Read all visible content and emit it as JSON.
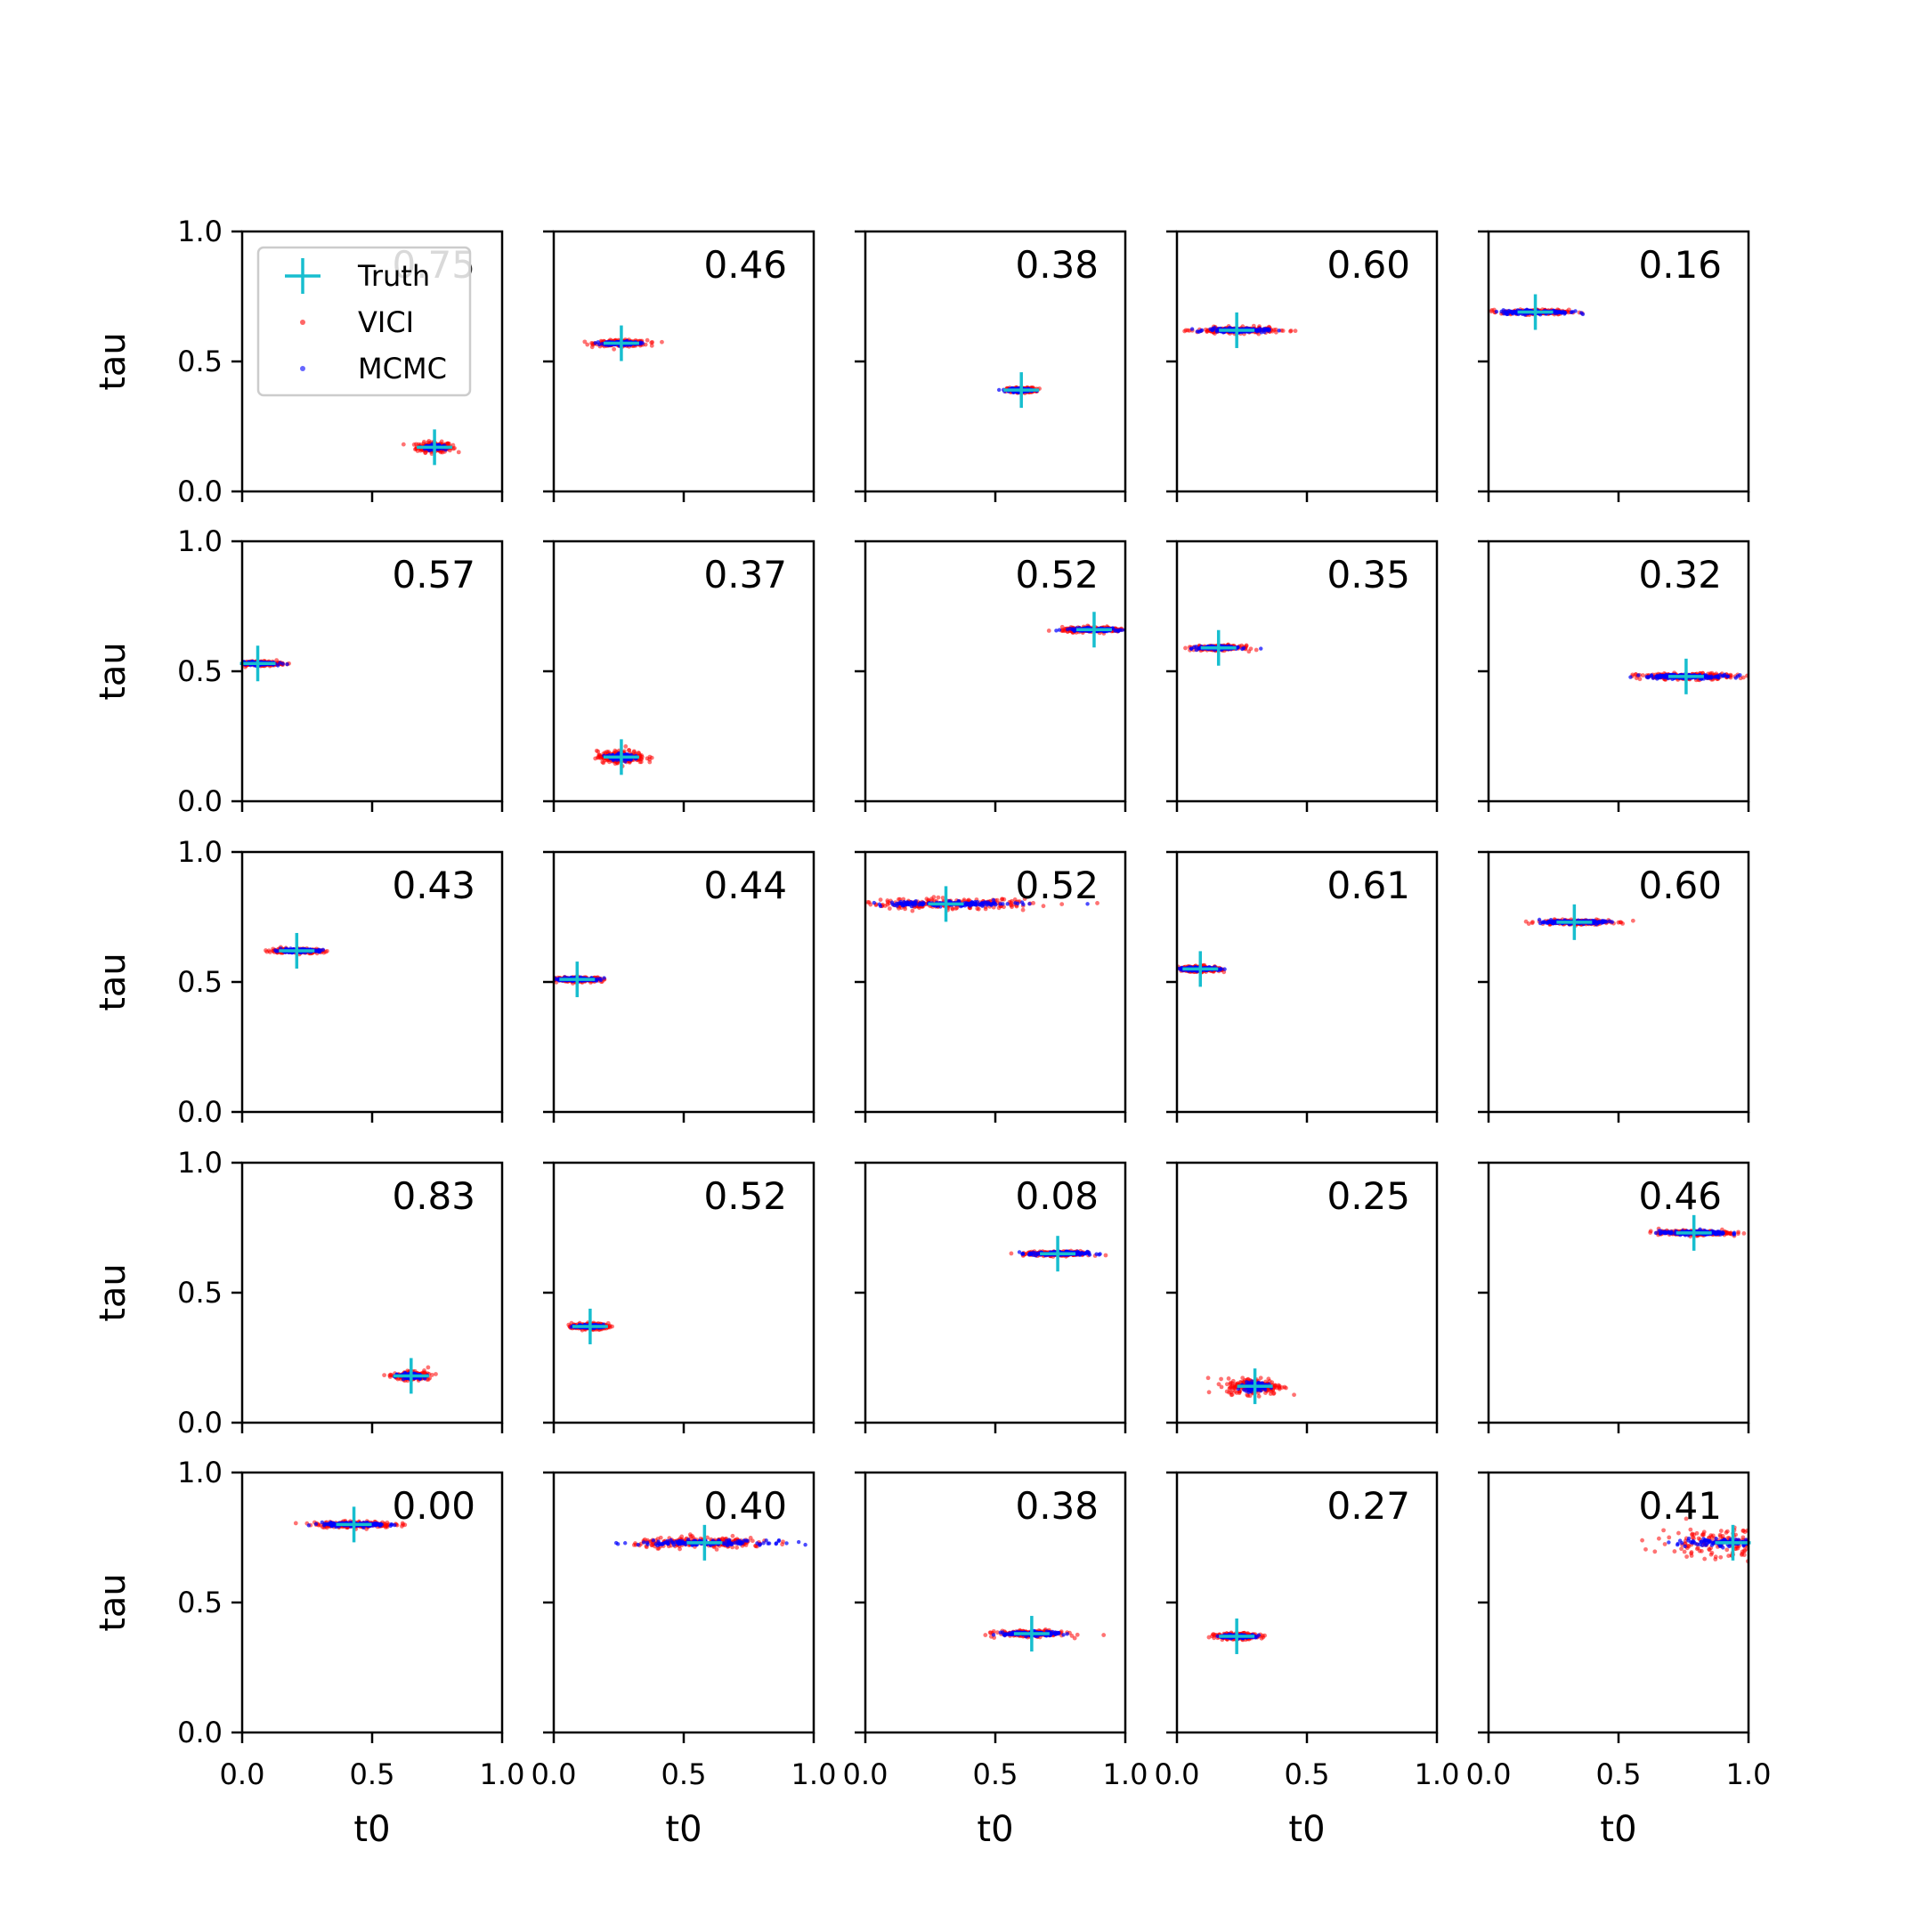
{
  "chart_data": {
    "type": "scatter",
    "rows": 5,
    "cols": 5,
    "xlabel": "t0",
    "ylabel": "tau",
    "xlim": [
      0,
      1
    ],
    "ylim": [
      0,
      1
    ],
    "xticks": [
      "0.0",
      "0.5",
      "1.0"
    ],
    "yticks": [
      "0.0",
      "0.5",
      "1.0"
    ],
    "legend": {
      "position": "upper-left of first panel",
      "entries": [
        {
          "label": "Truth",
          "marker": "+",
          "color": "#17becf"
        },
        {
          "label": "VICI",
          "marker": "dot",
          "color": "#ff0000"
        },
        {
          "label": "MCMC",
          "marker": "dot",
          "color": "#0000ff"
        }
      ]
    },
    "colors": {
      "truth": "#17becf",
      "vici": "#ff0000",
      "mcmc": "#0000ff"
    },
    "panels": [
      {
        "label": "0.75",
        "truth": [
          0.74,
          0.17
        ],
        "vici_spread": [
          0.09,
          0.025
        ],
        "mcmc_spread": [
          0.05,
          0.01
        ]
      },
      {
        "label": "0.46",
        "truth": [
          0.26,
          0.57
        ],
        "vici_spread": [
          0.13,
          0.015
        ],
        "mcmc_spread": [
          0.09,
          0.01
        ]
      },
      {
        "label": "0.38",
        "truth": [
          0.6,
          0.39
        ],
        "vici_spread": [
          0.07,
          0.012
        ],
        "mcmc_spread": [
          0.06,
          0.008
        ]
      },
      {
        "label": "0.60",
        "truth": [
          0.23,
          0.62
        ],
        "vici_spread": [
          0.2,
          0.015
        ],
        "mcmc_spread": [
          0.15,
          0.01
        ]
      },
      {
        "label": "0.16",
        "truth": [
          0.18,
          0.69
        ],
        "vici_spread": [
          0.17,
          0.012
        ],
        "mcmc_spread": [
          0.17,
          0.01
        ]
      },
      {
        "label": "0.57",
        "truth": [
          0.06,
          0.53
        ],
        "vici_spread": [
          0.12,
          0.012
        ],
        "mcmc_spread": [
          0.09,
          0.008
        ]
      },
      {
        "label": "0.37",
        "truth": [
          0.26,
          0.17
        ],
        "vici_spread": [
          0.12,
          0.03
        ],
        "mcmc_spread": [
          0.06,
          0.015
        ]
      },
      {
        "label": "0.52",
        "truth": [
          0.88,
          0.66
        ],
        "vici_spread": [
          0.16,
          0.012
        ],
        "mcmc_spread": [
          0.14,
          0.008
        ]
      },
      {
        "label": "0.35",
        "truth": [
          0.16,
          0.59
        ],
        "vici_spread": [
          0.12,
          0.012
        ],
        "mcmc_spread": [
          0.1,
          0.008
        ]
      },
      {
        "label": "0.32",
        "truth": [
          0.76,
          0.48
        ],
        "vici_spread": [
          0.24,
          0.015
        ],
        "mcmc_spread": [
          0.22,
          0.01
        ]
      },
      {
        "label": "0.43",
        "truth": [
          0.21,
          0.62
        ],
        "vici_spread": [
          0.13,
          0.012
        ],
        "mcmc_spread": [
          0.11,
          0.008
        ]
      },
      {
        "label": "0.44",
        "truth": [
          0.09,
          0.51
        ],
        "vici_spread": [
          0.13,
          0.012
        ],
        "mcmc_spread": [
          0.11,
          0.008
        ]
      },
      {
        "label": "0.52",
        "truth": [
          0.31,
          0.8
        ],
        "vici_spread": [
          0.43,
          0.025
        ],
        "mcmc_spread": [
          0.4,
          0.012
        ]
      },
      {
        "label": "0.61",
        "truth": [
          0.09,
          0.55
        ],
        "vici_spread": [
          0.1,
          0.015
        ],
        "mcmc_spread": [
          0.1,
          0.008
        ]
      },
      {
        "label": "0.60",
        "truth": [
          0.33,
          0.73
        ],
        "vici_spread": [
          0.18,
          0.012
        ],
        "mcmc_spread": [
          0.15,
          0.008
        ]
      },
      {
        "label": "0.83",
        "truth": [
          0.65,
          0.18
        ],
        "vici_spread": [
          0.09,
          0.02
        ],
        "mcmc_spread": [
          0.06,
          0.012
        ]
      },
      {
        "label": "0.52",
        "truth": [
          0.14,
          0.37
        ],
        "vici_spread": [
          0.09,
          0.015
        ],
        "mcmc_spread": [
          0.07,
          0.008
        ]
      },
      {
        "label": "0.08",
        "truth": [
          0.74,
          0.65
        ],
        "vici_spread": [
          0.16,
          0.012
        ],
        "mcmc_spread": [
          0.15,
          0.01
        ]
      },
      {
        "label": "0.25",
        "truth": [
          0.3,
          0.14
        ],
        "vici_spread": [
          0.14,
          0.04
        ],
        "mcmc_spread": [
          0.06,
          0.02
        ]
      },
      {
        "label": "0.46",
        "truth": [
          0.79,
          0.73
        ],
        "vici_spread": [
          0.18,
          0.012
        ],
        "mcmc_spread": [
          0.17,
          0.01
        ]
      },
      {
        "label": "0.00",
        "truth": [
          0.43,
          0.8
        ],
        "vici_spread": [
          0.2,
          0.015
        ],
        "mcmc_spread": [
          0.16,
          0.01
        ]
      },
      {
        "label": "0.40",
        "truth": [
          0.58,
          0.73
        ],
        "vici_spread": [
          0.35,
          0.025
        ],
        "mcmc_spread": [
          0.32,
          0.012
        ]
      },
      {
        "label": "0.38",
        "truth": [
          0.64,
          0.38
        ],
        "vici_spread": [
          0.17,
          0.015
        ],
        "mcmc_spread": [
          0.14,
          0.01
        ]
      },
      {
        "label": "0.27",
        "truth": [
          0.23,
          0.37
        ],
        "vici_spread": [
          0.11,
          0.015
        ],
        "mcmc_spread": [
          0.09,
          0.008
        ]
      },
      {
        "label": "0.41",
        "truth": [
          0.94,
          0.73
        ],
        "vici_spread": [
          0.38,
          0.08
        ],
        "mcmc_spread": [
          0.3,
          0.015
        ]
      }
    ]
  }
}
